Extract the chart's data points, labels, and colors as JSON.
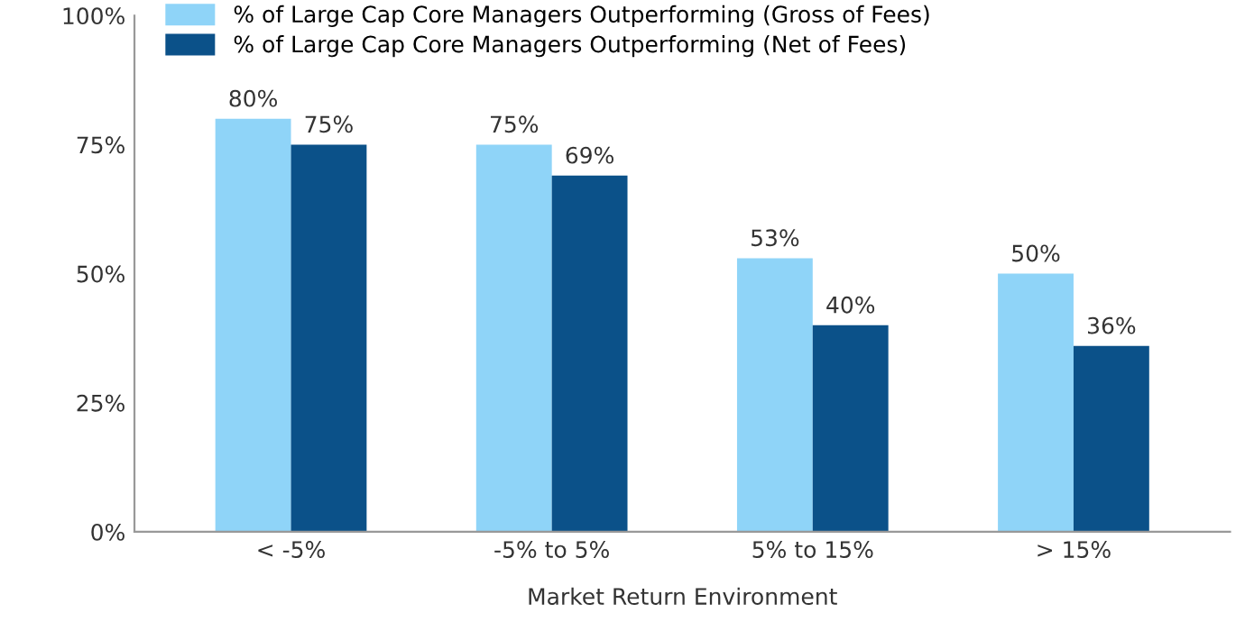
{
  "chart_data": {
    "type": "bar",
    "xlabel": "Market Return Environment",
    "categories": [
      "< -5%",
      "-5% to 5%",
      "5% to 15%",
      "> 15%"
    ],
    "series": [
      {
        "name": "% of Large Cap Core Managers Outperforming (Gross of Fees)",
        "color": "#8fd4f8",
        "values": [
          80,
          75,
          53,
          50
        ],
        "value_labels": [
          "80%",
          "75%",
          "53%",
          "50%"
        ]
      },
      {
        "name": "% of Large Cap Core Managers Outperforming (Net of Fees)",
        "color": "#0b5189",
        "values": [
          75,
          69,
          40,
          36
        ],
        "value_labels": [
          "75%",
          "69%",
          "40%",
          "36%"
        ]
      }
    ],
    "ylim": [
      0,
      100
    ],
    "yticks": [
      {
        "value": 0,
        "label": "0%"
      },
      {
        "value": 25,
        "label": "25%"
      },
      {
        "value": 50,
        "label": "50%"
      },
      {
        "value": 75,
        "label": "75%"
      },
      {
        "value": 100,
        "label": "100%"
      }
    ],
    "grid": false,
    "legend": "top left"
  }
}
